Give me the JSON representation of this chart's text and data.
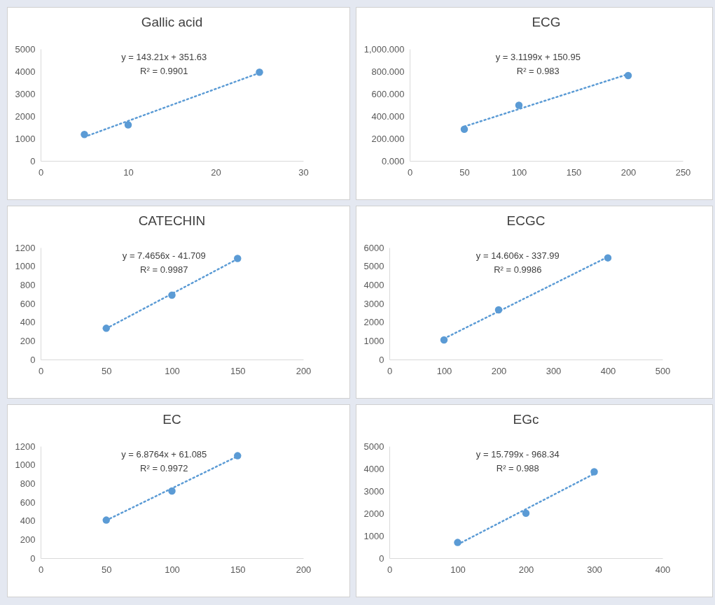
{
  "chart_data": [
    {
      "type": "scatter",
      "title": "Gallic acid",
      "marker": "circle",
      "xlim": [
        0,
        30
      ],
      "xticks": [
        0,
        10,
        20,
        30
      ],
      "ylim": [
        0,
        5000
      ],
      "yticks": [
        0,
        1000,
        2000,
        3000,
        4000,
        5000
      ],
      "annotations": [
        "y = 143.21x + 351.63",
        "R² = 0.9901"
      ],
      "series": [
        {
          "color": "#5b9bd5",
          "x": [
            5,
            10,
            25
          ],
          "values": [
            1180,
            1610,
            3960
          ]
        },
        {
          "type": "line",
          "marker": "none",
          "color": "#5b9bd5",
          "line_style": "dotted",
          "x": [
            5,
            25
          ],
          "values": [
            1070,
            3930
          ]
        }
      ]
    },
    {
      "type": "scatter",
      "title": "ECG",
      "marker": "circle",
      "xlim": [
        0,
        250
      ],
      "xticks": [
        0,
        50,
        100,
        150,
        200,
        250
      ],
      "ylim": [
        0,
        1000
      ],
      "yticks": [
        {
          "value": 0,
          "label": "0.000"
        },
        {
          "value": 200,
          "label": "200.000"
        },
        {
          "value": 400,
          "label": "400.000"
        },
        {
          "value": 600,
          "label": "600.000"
        },
        {
          "value": 800,
          "label": "800.000"
        },
        {
          "value": 1000,
          "label": "1,000.000"
        }
      ],
      "annotations": [
        "y = 3.1199x + 150.95",
        "R² = 0.983"
      ],
      "series": [
        {
          "color": "#5b9bd5",
          "x": [
            50,
            100,
            200
          ],
          "values": [
            283,
            497,
            763
          ]
        },
        {
          "type": "line",
          "marker": "none",
          "color": "#5b9bd5",
          "line_style": "dotted",
          "x": [
            50,
            200
          ],
          "values": [
            307,
            775
          ]
        }
      ]
    },
    {
      "type": "scatter",
      "title": "CATECHIN",
      "marker": "circle",
      "xlim": [
        0,
        200
      ],
      "xticks": [
        0,
        50,
        100,
        150,
        200
      ],
      "ylim": [
        0,
        1200
      ],
      "yticks": [
        0,
        200,
        400,
        600,
        800,
        1000,
        1200
      ],
      "annotations": [
        "y = 7.4656x - 41.709",
        "R² = 0.9987"
      ],
      "series": [
        {
          "color": "#5b9bd5",
          "x": [
            50,
            100,
            150
          ],
          "values": [
            335,
            690,
            1084
          ]
        },
        {
          "type": "line",
          "marker": "none",
          "color": "#5b9bd5",
          "line_style": "dotted",
          "x": [
            50,
            150
          ],
          "values": [
            332,
            1078
          ]
        }
      ]
    },
    {
      "type": "scatter",
      "title": "ECGC",
      "marker": "circle",
      "xlim": [
        0,
        500
      ],
      "xticks": [
        0,
        100,
        200,
        300,
        400,
        500
      ],
      "ylim": [
        0,
        6000
      ],
      "yticks": [
        0,
        1000,
        2000,
        3000,
        4000,
        5000,
        6000
      ],
      "annotations": [
        "y = 14.606x - 337.99",
        "R² = 0.9986"
      ],
      "series": [
        {
          "color": "#5b9bd5",
          "x": [
            100,
            200,
            400
          ],
          "values": [
            1050,
            2660,
            5450
          ]
        },
        {
          "type": "line",
          "marker": "none",
          "color": "#5b9bd5",
          "line_style": "dotted",
          "x": [
            100,
            400
          ],
          "values": [
            1120,
            5500
          ]
        }
      ]
    },
    {
      "type": "scatter",
      "title": "EC",
      "marker": "circle",
      "xlim": [
        0,
        200
      ],
      "xticks": [
        0,
        50,
        100,
        150,
        200
      ],
      "ylim": [
        0,
        1200
      ],
      "yticks": [
        0,
        200,
        400,
        600,
        800,
        1000,
        1200
      ],
      "annotations": [
        "y = 6.8764x + 61.085",
        "R² = 0.9972"
      ],
      "series": [
        {
          "color": "#5b9bd5",
          "x": [
            50,
            100,
            150
          ],
          "values": [
            408,
            720,
            1098
          ]
        },
        {
          "type": "line",
          "marker": "none",
          "color": "#5b9bd5",
          "line_style": "dotted",
          "x": [
            50,
            150
          ],
          "values": [
            405,
            1092
          ]
        }
      ]
    },
    {
      "type": "scatter",
      "title": "EGc",
      "marker": "circle",
      "xlim": [
        0,
        400
      ],
      "xticks": [
        0,
        100,
        200,
        300,
        400
      ],
      "ylim": [
        0,
        5000
      ],
      "yticks": [
        0,
        1000,
        2000,
        3000,
        4000,
        5000
      ],
      "annotations": [
        "y = 15.799x - 968.34",
        "R² = 0.988"
      ],
      "series": [
        {
          "color": "#5b9bd5",
          "x": [
            100,
            200,
            300
          ],
          "values": [
            700,
            2010,
            3860
          ]
        },
        {
          "type": "line",
          "marker": "none",
          "color": "#5b9bd5",
          "line_style": "dotted",
          "x": [
            100,
            300
          ],
          "values": [
            610,
            3770
          ]
        }
      ]
    }
  ]
}
